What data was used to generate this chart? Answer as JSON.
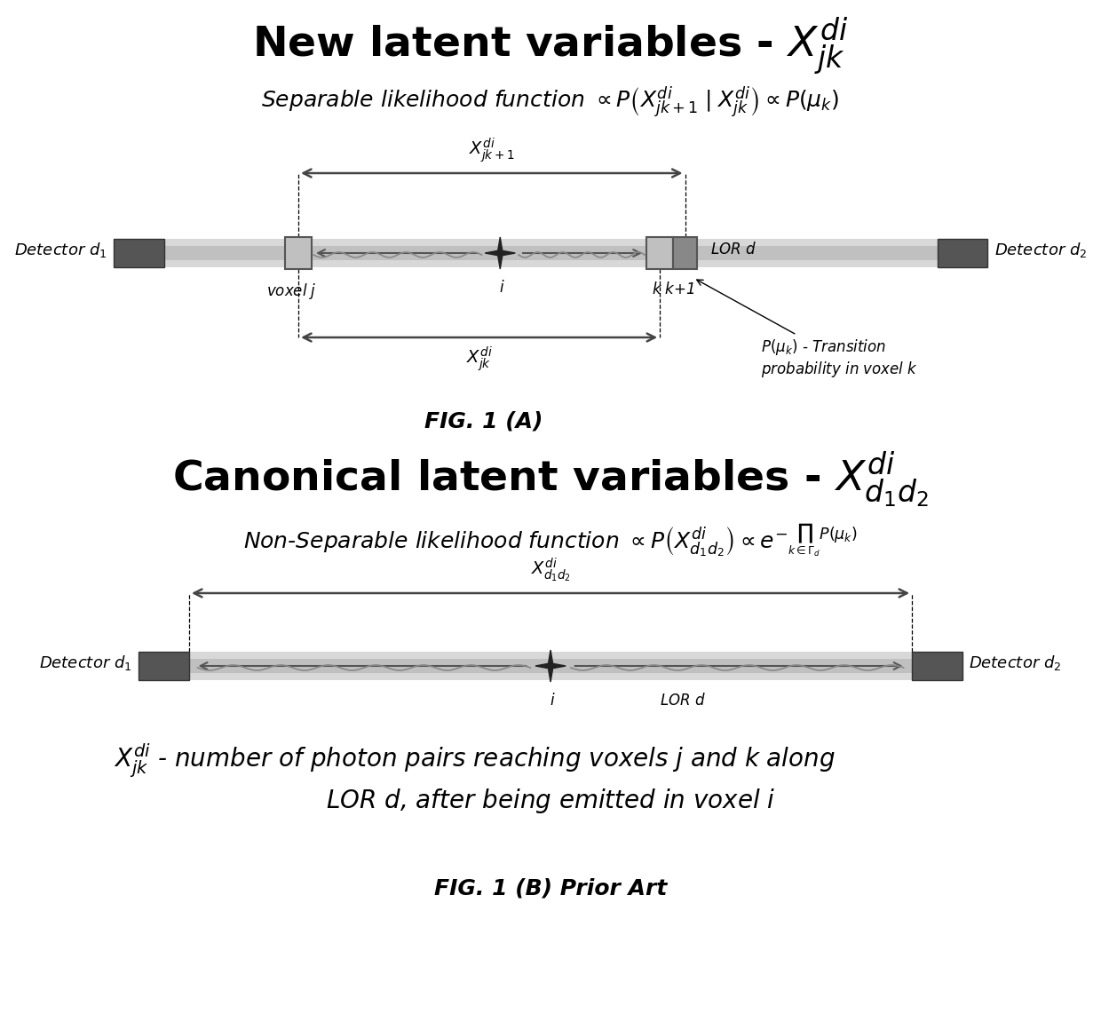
{
  "bg_color": "#ffffff",
  "title1_plain": "New latent variables - ",
  "title1_math": "$X_{jk}^{di}$",
  "sep_like_plain": "Separable likelihood function ",
  "sep_like_math": "$\\propto P\\left(X_{jk+1}^{di}\\mid X_{jk}^{di}\\right) \\propto P(\\mu_k)$",
  "title2_plain": "Canonical latent variables - ",
  "title2_math": "$X_{d_1 d_2}^{di}$",
  "nonsep_like_plain": "Non-Separable likelihood function ",
  "nonsep_like_math": "$\\propto P\\left(X_{d_1 d_2}^{di}\\right) \\propto e^{-\\prod_{k \\in \\Gamma_d} P(\\mu_k)}$",
  "fig1a_label": "FIG. 1 (A)",
  "fig1b_label": "FIG. 1 (B) Prior Art",
  "bottom_text1": "$X_{jk}^{di}$ - number of photon pairs reaching voxels $j$ and $k$ along",
  "bottom_text2": "LOR $d$, after being emitted in voxel $i$",
  "detector_color": "#555555",
  "lor_outer_color": "#d8d8d8",
  "lor_inner_color": "#c0c0c0",
  "arrow_color": "#444444",
  "voxel_box_light": "#b0b0b0",
  "voxel_box_dark": "#777777"
}
